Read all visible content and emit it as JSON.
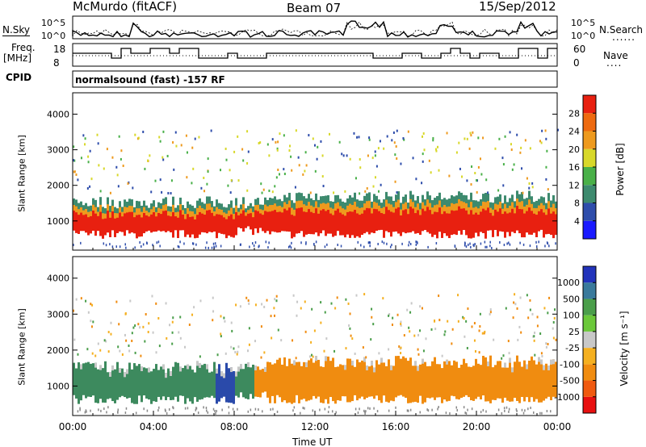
{
  "header": {
    "radar": "McMurdo (fitACF)",
    "beam": "Beam 07",
    "date": "15/Sep/2012"
  },
  "aux_panels": {
    "nsky_label": "N.Sky",
    "nsearch_label": "N.Search",
    "nsky_ticks": [
      "10^5",
      "10^0"
    ],
    "nsearch_ticks": [
      "10^5",
      "10^0"
    ],
    "freq_label_1": "Freq.",
    "freq_label_2": "[MHz]",
    "freq_ticks": [
      "18",
      "8"
    ],
    "nave_label": "Nave",
    "nave_ticks": [
      "60",
      "0"
    ],
    "cpid_label": "CPID",
    "cpid_text": "normalsound (fast) -157 RF"
  },
  "chart_data": [
    {
      "type": "heatmap",
      "name": "power",
      "ylabel": "Slant Range [km]",
      "y_ticks": [
        1000,
        2000,
        3000,
        4000
      ],
      "ylim": [
        180,
        4600
      ],
      "xlim": [
        0,
        24
      ],
      "colorbar": {
        "title": "Power [dB]",
        "ticks": [
          "4",
          "8",
          "12",
          "16",
          "20",
          "24",
          "28"
        ],
        "colors": [
          "#1a1aff",
          "#2e4dab",
          "#3d8a6e",
          "#49b048",
          "#d8d82a",
          "#ee9a1e",
          "#ee6a10",
          "#e82010"
        ]
      },
      "bands": [
        {
          "level": "weak",
          "color": "#3d8a6e"
        },
        {
          "level": "medium",
          "color": "#ee9a1e"
        },
        {
          "level": "strong",
          "color": "#e82010"
        }
      ]
    },
    {
      "type": "heatmap",
      "name": "velocity",
      "ylabel": "Slant Range [km]",
      "y_ticks": [
        1000,
        2000,
        3000,
        4000
      ],
      "ylim": [
        180,
        4600
      ],
      "xlim": [
        0,
        24
      ],
      "colorbar": {
        "title": "Velocity [m s⁻¹]",
        "ticks": [
          "1000",
          "500",
          "100",
          "25",
          "-25",
          "-100",
          "-500",
          "-1000"
        ],
        "colors": [
          "#2233bb",
          "#3a7a9c",
          "#4a9e4a",
          "#6bc83a",
          "#c8c8c8",
          "#f5b020",
          "#f08c10",
          "#f05a10",
          "#e81010"
        ]
      },
      "segments": [
        {
          "x0": 0.0,
          "x1": 7.0,
          "color": "#3d8a5e"
        },
        {
          "x0": 7.0,
          "x1": 8.0,
          "color": "#2a4aaa"
        },
        {
          "x0": 8.0,
          "x1": 9.0,
          "color": "#3d8a5e"
        },
        {
          "x0": 9.0,
          "x1": 24.0,
          "color": "#f08c10"
        }
      ]
    }
  ],
  "x_axis": {
    "ticks": [
      "00:00",
      "04:00",
      "08:00",
      "12:00",
      "16:00",
      "20:00",
      "00:00"
    ],
    "label": "Time UT"
  }
}
